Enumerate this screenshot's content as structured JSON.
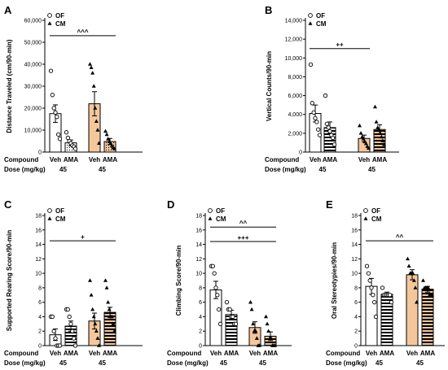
{
  "colors": {
    "veh": "#ffffff",
    "ama_cm": "#f4c79b",
    "ama_stripe": "#000000",
    "axis": "#000000"
  },
  "legend": [
    "OF",
    "CM"
  ],
  "bottom": {
    "compound": "Compound",
    "dose": "Dose (mg/kg)",
    "veh": "Veh",
    "ama": "AMA",
    "dose_value": "45"
  },
  "chart_data": [
    {
      "id": "A",
      "type": "bar",
      "label": "A",
      "ylabel": "Distance Traveled (cm/90-min)",
      "ylim": [
        0,
        60000
      ],
      "yticks": [
        0,
        10000,
        20000,
        30000,
        40000,
        50000,
        60000
      ],
      "yticklabels": [
        "0",
        "10,000",
        "20,000",
        "30,000",
        "40,000",
        "50,000",
        "60,000"
      ],
      "ama_style": "dots",
      "bars": [
        {
          "group": "OF",
          "compound": "Veh",
          "mean": 17500,
          "sem": 4000,
          "points": [
            37000,
            26000,
            20000,
            18000,
            16000,
            8000,
            6000
          ]
        },
        {
          "group": "OF",
          "compound": "AMA",
          "mean": 4200,
          "sem": 1300,
          "points": [
            9000,
            6500,
            5000,
            4000,
            3000,
            2500,
            1500
          ]
        },
        {
          "group": "CM",
          "compound": "Veh",
          "mean": 22000,
          "sem": 5500,
          "points": [
            40000,
            38500,
            36000,
            30000,
            20000,
            14000,
            10000,
            4000
          ]
        },
        {
          "group": "CM",
          "compound": "AMA",
          "mean": 4800,
          "sem": 1400,
          "points": [
            9500,
            8000,
            6000,
            4800,
            4000,
            3000,
            2000,
            1500
          ]
        }
      ],
      "sig": [
        {
          "text": "^^^",
          "from": 0,
          "to": 3,
          "y": 53000
        }
      ]
    },
    {
      "id": "B",
      "type": "bar",
      "label": "B",
      "ylabel": "Vertical Counts/90-min",
      "ylim": [
        0,
        14000
      ],
      "yticks": [
        0,
        2000,
        4000,
        6000,
        8000,
        10000,
        12000,
        14000
      ],
      "yticklabels": [
        "0",
        "2,000",
        "4,000",
        "6,000",
        "8,000",
        "10,000",
        "12,000",
        "14,000"
      ],
      "ama_style": "stripes",
      "bars": [
        {
          "group": "OF",
          "compound": "Veh",
          "mean": 4100,
          "sem": 900,
          "points": [
            9300,
            5200,
            4200,
            3600,
            3200,
            2400,
            1800
          ]
        },
        {
          "group": "OF",
          "compound": "AMA",
          "mean": 2600,
          "sem": 600,
          "points": [
            6000,
            3000,
            2600,
            2200,
            1800,
            1500,
            800
          ]
        },
        {
          "group": "CM",
          "compound": "Veh",
          "mean": 1450,
          "sem": 350,
          "points": [
            2800,
            2000,
            1600,
            1400,
            1100,
            900,
            600,
            400
          ]
        },
        {
          "group": "CM",
          "compound": "AMA",
          "mean": 2400,
          "sem": 500,
          "points": [
            4800,
            3200,
            2600,
            2300,
            2000,
            1600,
            1200,
            800
          ]
        }
      ],
      "sig": [
        {
          "text": "++",
          "from": 0,
          "to": 2,
          "y": 11000
        }
      ]
    },
    {
      "id": "C",
      "type": "bar",
      "label": "C",
      "ylabel": "Supported Rearing Score/90-min",
      "ylim": [
        0,
        18
      ],
      "yticks": [
        0,
        2,
        4,
        6,
        8,
        10,
        12,
        14,
        16,
        18
      ],
      "yticklabels": [
        "0",
        "2",
        "4",
        "6",
        "8",
        "10",
        "12",
        "14",
        "16",
        "18"
      ],
      "ama_style": "stripes",
      "bars": [
        {
          "group": "OF",
          "compound": "Veh",
          "mean": 1.5,
          "sem": 0.8,
          "points": [
            4,
            4,
            2,
            1,
            0,
            0,
            0
          ]
        },
        {
          "group": "OF",
          "compound": "AMA",
          "mean": 2.7,
          "sem": 0.7,
          "points": [
            5,
            5,
            4,
            3,
            2,
            1,
            0
          ]
        },
        {
          "group": "CM",
          "compound": "Veh",
          "mean": 3.4,
          "sem": 1.1,
          "points": [
            9,
            7,
            5,
            4,
            3,
            2,
            1,
            0
          ]
        },
        {
          "group": "CM",
          "compound": "AMA",
          "mean": 4.6,
          "sem": 0.7,
          "points": [
            9,
            8,
            6,
            5,
            4,
            4,
            3,
            2
          ]
        }
      ],
      "sig": [
        {
          "text": "+",
          "from": 0,
          "to": 3,
          "y": 14.5
        }
      ]
    },
    {
      "id": "D",
      "type": "bar",
      "label": "D",
      "ylabel": "Climbing Score/90-min",
      "ylim": [
        0,
        18
      ],
      "yticks": [
        0,
        2,
        4,
        6,
        8,
        10,
        12,
        14,
        16,
        18
      ],
      "yticklabels": [
        "0",
        "2",
        "4",
        "6",
        "8",
        "10",
        "12",
        "14",
        "16",
        "18"
      ],
      "ama_style": "stripes",
      "bars": [
        {
          "group": "OF",
          "compound": "Veh",
          "mean": 7.7,
          "sem": 1.2,
          "points": [
            11,
            11,
            10,
            8,
            7,
            5,
            3
          ]
        },
        {
          "group": "OF",
          "compound": "AMA",
          "mean": 4.3,
          "sem": 0.6,
          "points": [
            6,
            5,
            5,
            4,
            4,
            3,
            3
          ]
        },
        {
          "group": "CM",
          "compound": "Veh",
          "mean": 2.5,
          "sem": 0.8,
          "points": [
            6,
            5,
            3,
            2,
            2,
            1,
            0,
            0
          ]
        },
        {
          "group": "CM",
          "compound": "AMA",
          "mean": 1.3,
          "sem": 0.6,
          "points": [
            4,
            3,
            2,
            1,
            1,
            0,
            0,
            0
          ]
        }
      ],
      "sig": [
        {
          "text": "^^",
          "from": 0,
          "to": 3,
          "y": 16.4
        },
        {
          "text": "+++",
          "from": 0,
          "to": 3,
          "y": 14.4
        }
      ]
    },
    {
      "id": "E",
      "type": "bar",
      "label": "E",
      "ylabel": "Oral Stereotypies/90-min",
      "ylim": [
        0,
        18
      ],
      "yticks": [
        0,
        2,
        4,
        6,
        8,
        10,
        12,
        14,
        16,
        18
      ],
      "yticklabels": [
        "0",
        "2",
        "4",
        "6",
        "8",
        "10",
        "12",
        "14",
        "16",
        "18"
      ],
      "ama_style": "stripes",
      "bars": [
        {
          "group": "OF",
          "compound": "Veh",
          "mean": 8.2,
          "sem": 1.1,
          "points": [
            11,
            10,
            9,
            8,
            7,
            6,
            4
          ]
        },
        {
          "group": "OF",
          "compound": "AMA",
          "mean": 7.1,
          "sem": 0.3,
          "points": [
            8,
            7,
            7,
            7,
            7,
            7,
            6
          ]
        },
        {
          "group": "CM",
          "compound": "Veh",
          "mean": 9.8,
          "sem": 0.7,
          "points": [
            12,
            11,
            10,
            10,
            10,
            9,
            8,
            6
          ]
        },
        {
          "group": "CM",
          "compound": "AMA",
          "mean": 7.8,
          "sem": 0.4,
          "points": [
            9,
            8,
            8,
            8,
            8,
            7,
            7,
            7
          ]
        }
      ],
      "sig": [
        {
          "text": "^^",
          "from": 0,
          "to": 3,
          "y": 14.5
        }
      ]
    }
  ]
}
